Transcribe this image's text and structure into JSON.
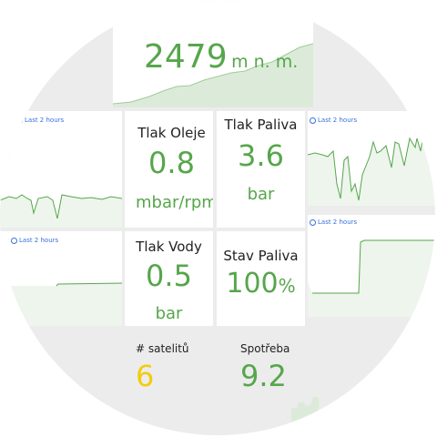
{
  "altitude": {
    "value": "2479",
    "unit": "m n. m."
  },
  "range_label": "Last 2 hours",
  "tiles": {
    "oil_pressure": {
      "title": "Tlak Oleje",
      "value": "0.8",
      "unit": "mbar/rpm"
    },
    "fuel_pressure": {
      "title": "Tlak Paliva",
      "value": "3.6",
      "unit": "bar"
    },
    "water_pressure": {
      "title": "Tlak Vody",
      "value": "0.5",
      "unit": "bar"
    },
    "fuel_level": {
      "title": "Stav Paliva",
      "value": "100",
      "unit": "%"
    },
    "satellites": {
      "title": "# satelitů",
      "value": "6"
    },
    "consumption": {
      "title": "Spotřeba",
      "value": "9.2"
    }
  },
  "colors": {
    "green": "#56a64b",
    "yellow": "#f2cc0c",
    "link": "#3871dc",
    "background": "#ececec"
  }
}
